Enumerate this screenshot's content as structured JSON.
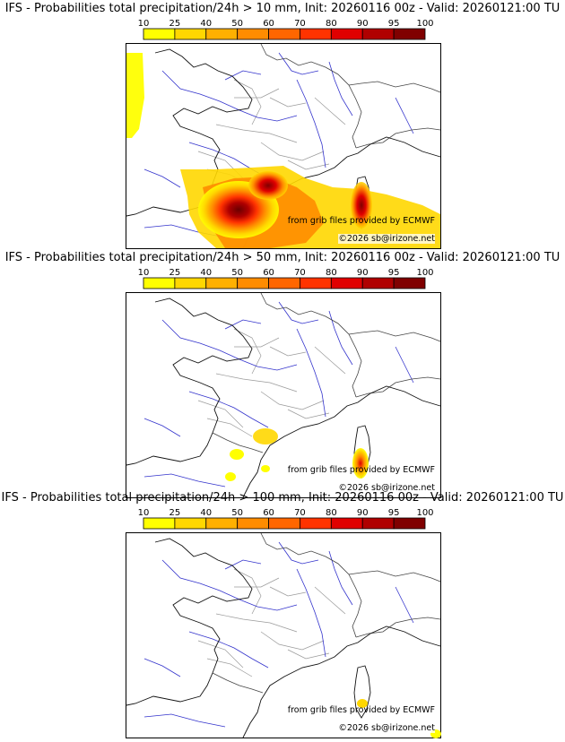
{
  "colorbar": {
    "ticks": [
      "10",
      "25",
      "40",
      "50",
      "60",
      "70",
      "80",
      "90",
      "95",
      "100"
    ],
    "colors": [
      "#ffff00",
      "#ffd700",
      "#ffb000",
      "#ff8c00",
      "#ff6600",
      "#ff3300",
      "#e00000",
      "#b00000",
      "#800000"
    ]
  },
  "panels": [
    {
      "title": "IFS - Probabilities total precipitation/24h > 10 mm, Init: 20260116 00z - Valid: 20260121:00 TU",
      "probability_percent": 90
    },
    {
      "title": "IFS - Probabilities total precipitation/24h > 50 mm, Init: 20260116 00z - Valid: 20260121:00 TU",
      "probability_percent": 70
    },
    {
      "title": "IFS - Probabilities total precipitation/24h > 100 mm, Init: 20260116 00z - Valid: 20260121:00 TU",
      "probability_percent": 25
    }
  ],
  "credits": {
    "grib": "from grib files provided by ECMWF",
    "copyright": "©2026 sb@irizone.net"
  }
}
